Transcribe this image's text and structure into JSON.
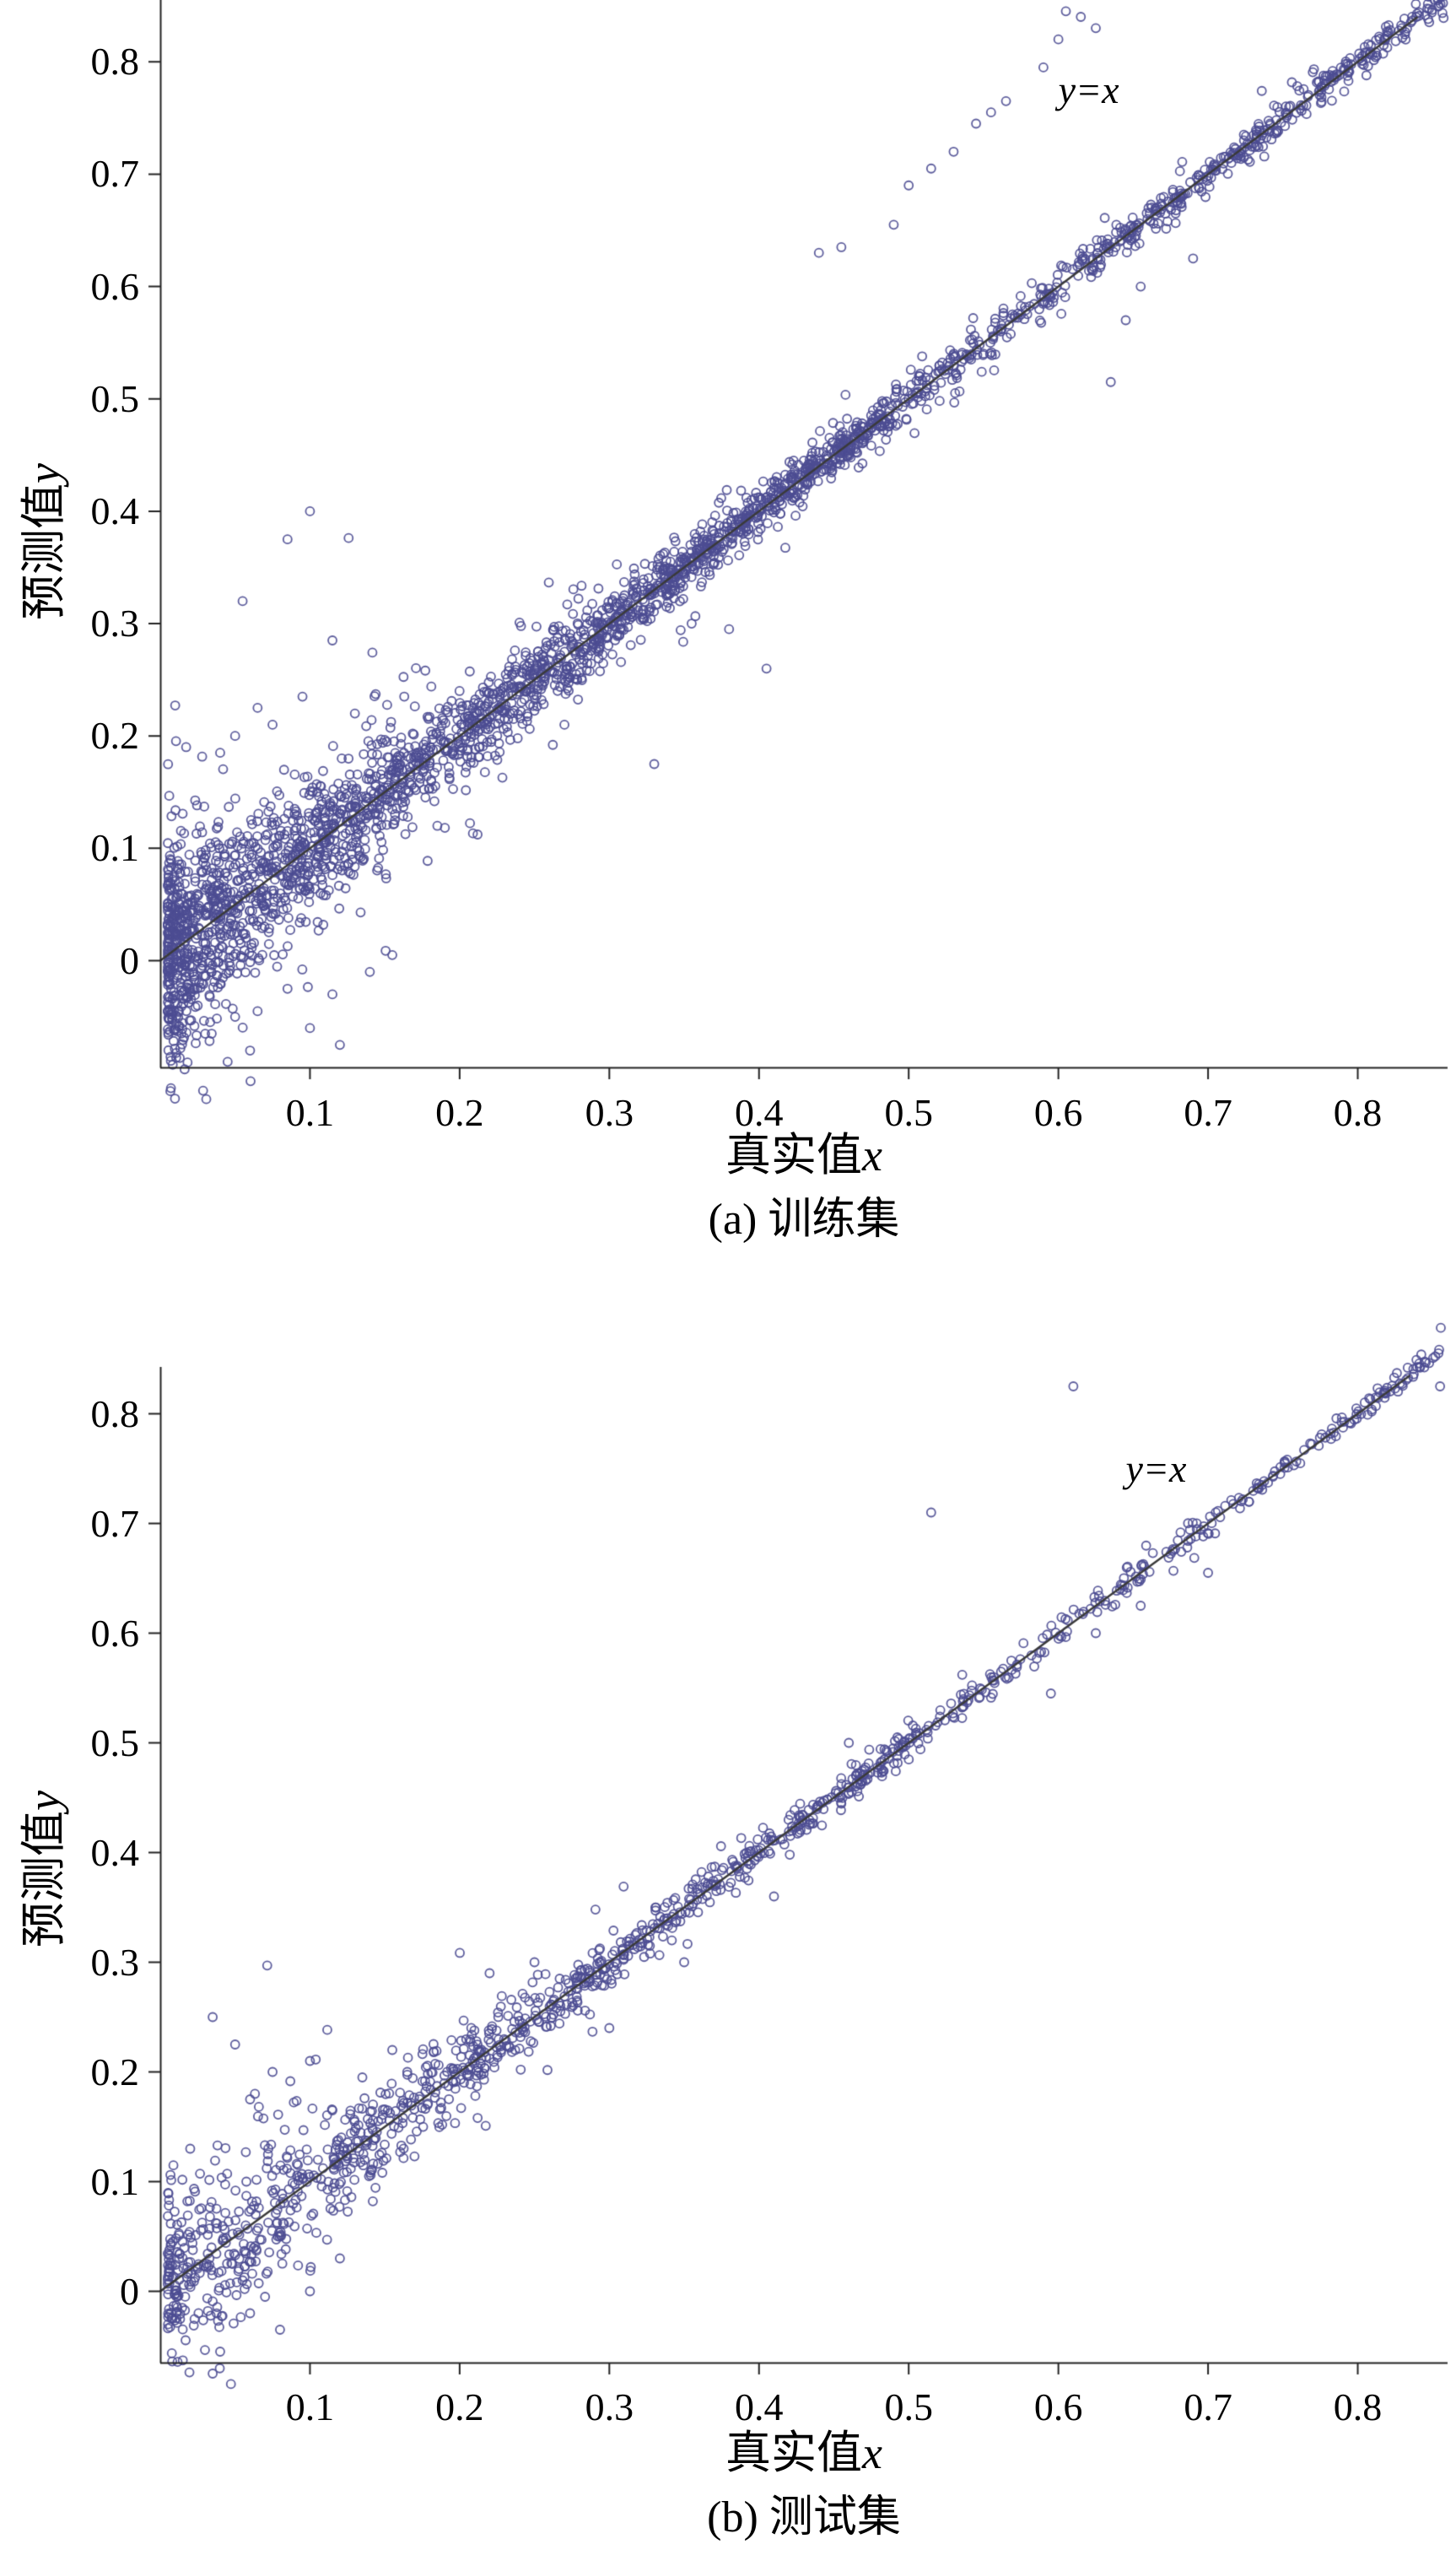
{
  "figure": {
    "background": "#ffffff",
    "marker_color": "#4c4c92",
    "reference_line_color": "#3a3a3a",
    "axis_color": "#222222",
    "text_color": "#000000"
  },
  "chart_data": [
    {
      "id": "train",
      "type": "scatter",
      "caption": "(a) 训练集",
      "xlabel_cn": "真实值",
      "xlabel_var": "x",
      "ylabel_cn": "预测值",
      "ylabel_var": "y",
      "line_label": "y=x",
      "line_label_pos": [
        0.6,
        0.775
      ],
      "reference_line": "y = x",
      "xlim": [
        0,
        0.86
      ],
      "ylim": [
        -0.095,
        0.84
      ],
      "xticks": [
        0.1,
        0.2,
        0.3,
        0.4,
        0.5,
        0.6,
        0.7,
        0.8
      ],
      "yticks": [
        0,
        0.1,
        0.2,
        0.3,
        0.4,
        0.5,
        0.6,
        0.7,
        0.8
      ],
      "marker": {
        "shape": "circle-open",
        "radius_px": 5
      },
      "synthesis": {
        "seed": 101,
        "n": 3000,
        "low_frac": 0.58,
        "low_base": 0.005,
        "low_span": 0.48,
        "low_pow": 1.9,
        "x_min": 0.005,
        "x_max": 0.86,
        "noise_base": 0.006,
        "noise_amp": 0.04,
        "noise_decay": 0.18,
        "tail_frac": 0.1,
        "tail_mult": 2.6
      },
      "outliers": [
        [
          0.44,
          0.63
        ],
        [
          0.455,
          0.635
        ],
        [
          0.49,
          0.655
        ],
        [
          0.5,
          0.69
        ],
        [
          0.515,
          0.705
        ],
        [
          0.53,
          0.72
        ],
        [
          0.545,
          0.745
        ],
        [
          0.555,
          0.755
        ],
        [
          0.565,
          0.765
        ],
        [
          0.59,
          0.795
        ],
        [
          0.6,
          0.82
        ],
        [
          0.605,
          0.845
        ],
        [
          0.615,
          0.84
        ],
        [
          0.625,
          0.83
        ],
        [
          0.085,
          0.375
        ],
        [
          0.1,
          0.4
        ],
        [
          0.055,
          0.32
        ],
        [
          0.115,
          0.285
        ],
        [
          0.065,
          0.225
        ],
        [
          0.095,
          0.235
        ],
        [
          0.13,
          0.22
        ],
        [
          0.075,
          0.21
        ],
        [
          0.05,
          0.2
        ],
        [
          0.04,
          0.185
        ],
        [
          0.33,
          0.175
        ],
        [
          0.38,
          0.295
        ],
        [
          0.405,
          0.26
        ],
        [
          0.43,
          0.445
        ],
        [
          0.355,
          0.3
        ],
        [
          0.27,
          0.21
        ],
        [
          0.635,
          0.515
        ],
        [
          0.645,
          0.57
        ],
        [
          0.655,
          0.6
        ],
        [
          0.69,
          0.625
        ],
        [
          0.03,
          -0.065
        ],
        [
          0.05,
          -0.05
        ],
        [
          0.065,
          -0.045
        ],
        [
          0.1,
          -0.06
        ],
        [
          0.045,
          -0.09
        ],
        [
          0.115,
          -0.03
        ],
        [
          0.085,
          -0.025
        ],
        [
          0.06,
          -0.08
        ],
        [
          0.025,
          -0.04
        ],
        [
          0.14,
          -0.01
        ],
        [
          0.155,
          0.005
        ],
        [
          0.12,
          -0.075
        ]
      ]
    },
    {
      "id": "test",
      "type": "scatter",
      "caption": "(b) 测试集",
      "xlabel_cn": "真实值",
      "xlabel_var": "x",
      "ylabel_cn": "预测值",
      "ylabel_var": "y",
      "line_label": "y=x",
      "line_label_pos": [
        0.645,
        0.75
      ],
      "reference_line": "y = x",
      "xlim": [
        0,
        0.86
      ],
      "ylim": [
        -0.065,
        0.835
      ],
      "xticks": [
        0.1,
        0.2,
        0.3,
        0.4,
        0.5,
        0.6,
        0.7,
        0.8
      ],
      "yticks": [
        0,
        0.1,
        0.2,
        0.3,
        0.4,
        0.5,
        0.6,
        0.7,
        0.8
      ],
      "marker": {
        "shape": "circle-open",
        "radius_px": 5
      },
      "synthesis": {
        "seed": 202,
        "n": 1300,
        "low_frac": 0.5,
        "low_base": 0.005,
        "low_span": 0.5,
        "low_pow": 1.8,
        "x_min": 0.005,
        "x_max": 0.86,
        "noise_base": 0.005,
        "noise_amp": 0.045,
        "noise_decay": 0.15,
        "tail_frac": 0.08,
        "tail_mult": 2.5
      },
      "outliers": [
        [
          0.515,
          0.71
        ],
        [
          0.61,
          0.825
        ],
        [
          0.855,
          0.825
        ],
        [
          0.035,
          0.25
        ],
        [
          0.05,
          0.225
        ],
        [
          0.075,
          0.2
        ],
        [
          0.02,
          0.13
        ],
        [
          0.1,
          0.21
        ],
        [
          0.135,
          0.195
        ],
        [
          0.06,
          0.175
        ],
        [
          0.115,
          0.165
        ],
        [
          0.155,
          0.22
        ],
        [
          0.165,
          0.2
        ],
        [
          0.04,
          -0.055
        ],
        [
          0.06,
          -0.02
        ],
        [
          0.08,
          -0.035
        ],
        [
          0.1,
          0.0
        ],
        [
          0.055,
          0.01
        ],
        [
          0.07,
          -0.005
        ],
        [
          0.035,
          -0.075
        ],
        [
          0.12,
          0.03
        ],
        [
          0.595,
          0.545
        ],
        [
          0.655,
          0.625
        ],
        [
          0.7,
          0.655
        ],
        [
          0.625,
          0.6
        ],
        [
          0.3,
          0.24
        ],
        [
          0.35,
          0.3
        ],
        [
          0.41,
          0.36
        ],
        [
          0.46,
          0.5
        ],
        [
          0.22,
          0.29
        ],
        [
          0.25,
          0.3
        ]
      ]
    }
  ]
}
